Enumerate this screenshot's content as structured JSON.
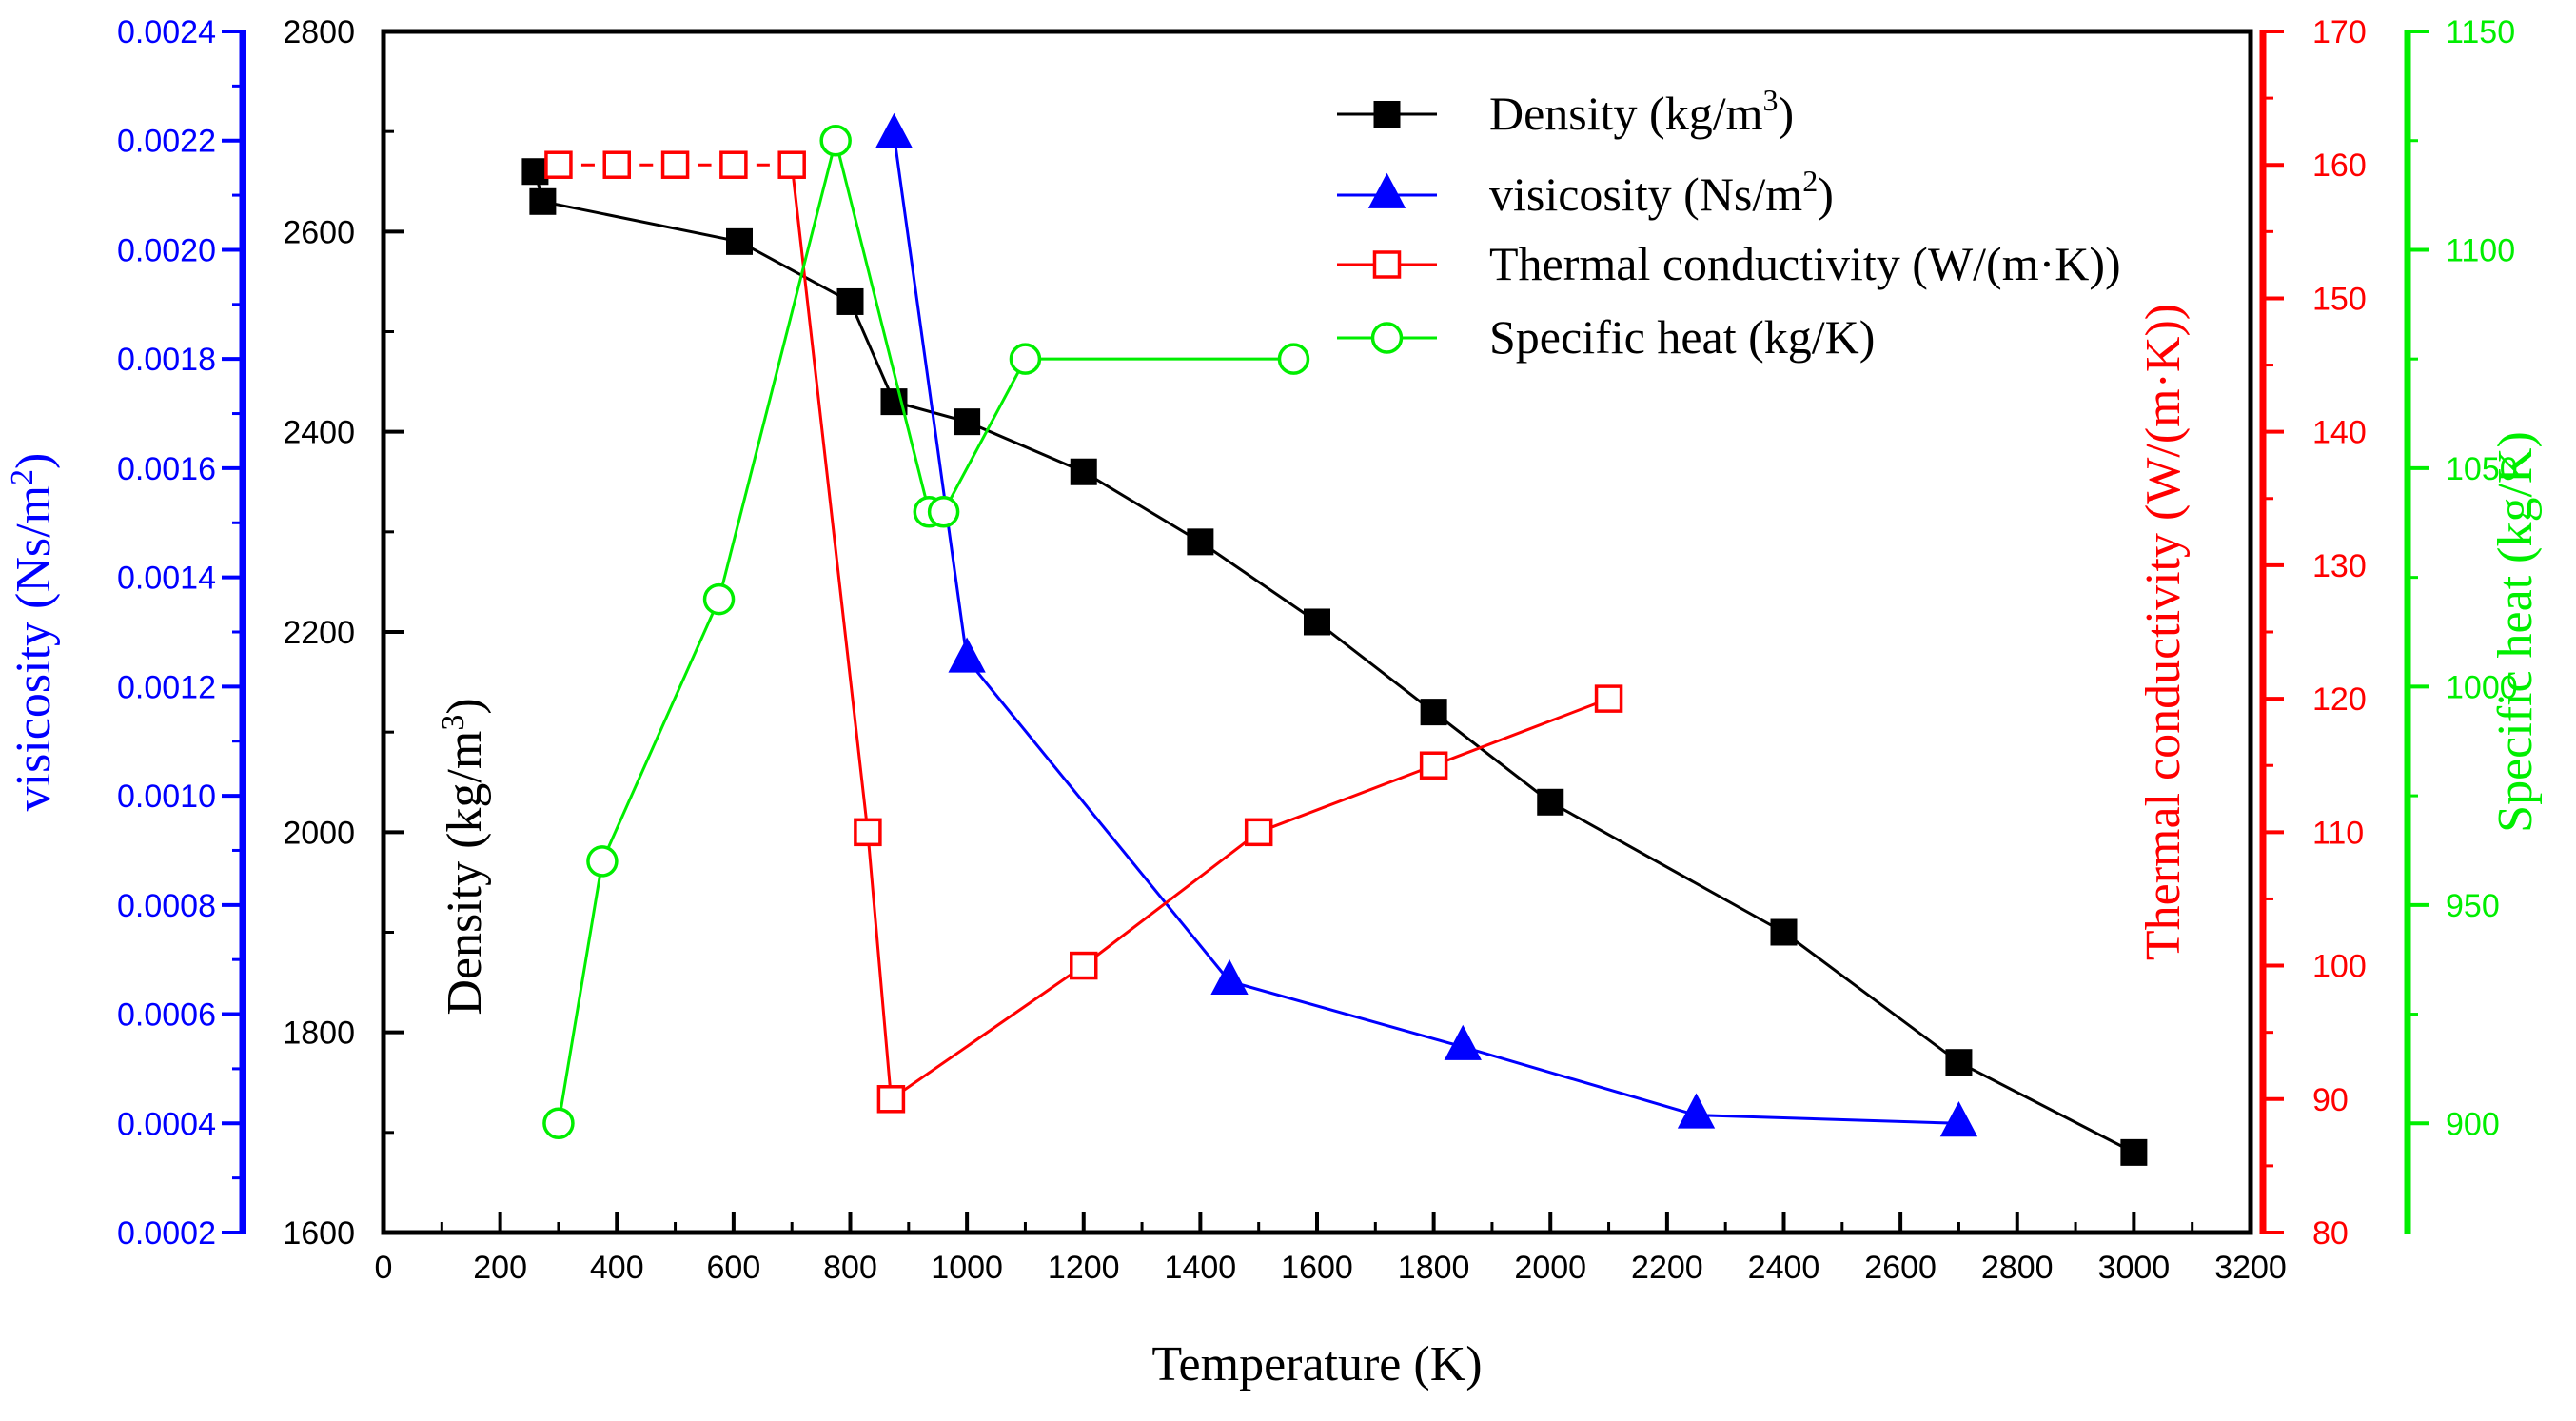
{
  "chart_data": {
    "type": "line",
    "title": "",
    "xlabel": "Temperature (K)",
    "xlim": [
      0,
      3200
    ],
    "x_ticks": [
      "0",
      "200",
      "400",
      "600",
      "800",
      "1000",
      "1200",
      "1400",
      "1600",
      "1800",
      "2000",
      "2200",
      "2400",
      "2600",
      "2800",
      "3000",
      "3200"
    ],
    "grid": false,
    "legend_position": "top-right",
    "axes": {
      "density": {
        "label": "Density (kg/m3)",
        "label_base": "Density (kg/m",
        "label_sup": "3",
        "label_end": ")",
        "ylim": [
          1600,
          2800
        ],
        "ticks": [
          "1600",
          "1800",
          "2000",
          "2200",
          "2400",
          "2600",
          "2800"
        ],
        "color": "#000000",
        "side": "left-inner"
      },
      "viscosity": {
        "label": "visicosity (Ns/m2)",
        "label_base": "visicosity (Ns/m",
        "label_sup": "2",
        "label_end": ")",
        "ylim": [
          0.0002,
          0.0024
        ],
        "ticks": [
          "0.0002",
          "0.0004",
          "0.0006",
          "0.0008",
          "0.0010",
          "0.0012",
          "0.0014",
          "0.0016",
          "0.0018",
          "0.0020",
          "0.0022",
          "0.0024"
        ],
        "color": "#0000ff",
        "side": "left-outer"
      },
      "thermal_conductivity": {
        "label": "Thermal conductivity (W/(m·K))",
        "ylim": [
          80,
          170
        ],
        "ticks": [
          "80",
          "90",
          "100",
          "110",
          "120",
          "130",
          "140",
          "150",
          "160",
          "170"
        ],
        "color": "#ff0000",
        "side": "right-inner"
      },
      "specific_heat": {
        "label": "Specific heat (kg/K)",
        "ylim": [
          875,
          1150
        ],
        "ticks": [
          "900",
          "950",
          "1000",
          "1050",
          "1100",
          "1150"
        ],
        "color": "#00ee00",
        "side": "right-outer"
      }
    },
    "series": [
      {
        "key": "density",
        "name": "Density (kg/m3)",
        "legend_base": "Density (kg/m",
        "legend_sup": "3",
        "legend_end": ")",
        "axis": "density",
        "marker": "square-filled",
        "color": "#000000",
        "dashed": false,
        "points": [
          [
            260,
            2660
          ],
          [
            273,
            2630
          ],
          [
            610,
            2590
          ],
          [
            800,
            2530
          ],
          [
            875,
            2430
          ],
          [
            1000,
            2410
          ],
          [
            1200,
            2360
          ],
          [
            1400,
            2290
          ],
          [
            1600,
            2210
          ],
          [
            1800,
            2120
          ],
          [
            2000,
            2030
          ],
          [
            2400,
            1900
          ],
          [
            2700,
            1770
          ],
          [
            3000,
            1680
          ]
        ]
      },
      {
        "key": "viscosity",
        "name": "visicosity (Ns/m2)",
        "legend_base": "visicosity (Ns/m",
        "legend_sup": "2",
        "legend_end": ")",
        "axis": "viscosity",
        "marker": "triangle-filled",
        "color": "#0000ff",
        "dashed": false,
        "points": [
          [
            875,
            0.00221
          ],
          [
            1000,
            0.00125
          ],
          [
            1450,
            0.00066
          ],
          [
            1850,
            0.00054
          ],
          [
            2250,
            0.000415
          ],
          [
            2700,
            0.0004
          ]
        ]
      },
      {
        "key": "thermal_conductivity",
        "name": "Thermal conductivity (W/(m·K))",
        "axis": "thermal_conductivity",
        "marker": "square-open",
        "color": "#ff0000",
        "points": [
          [
            300,
            160
          ],
          [
            400,
            160
          ],
          [
            500,
            160
          ],
          [
            600,
            160
          ],
          [
            700,
            160
          ],
          [
            830,
            110
          ],
          [
            870,
            90
          ],
          [
            1200,
            100
          ],
          [
            1500,
            110
          ],
          [
            1800,
            115
          ],
          [
            2100,
            120
          ]
        ],
        "dashed_until_index": 4
      },
      {
        "key": "specific_heat",
        "name": "Specific heat (kg/K)",
        "axis": "specific_heat",
        "marker": "circle-open",
        "color": "#00ee00",
        "dashed": false,
        "points": [
          [
            300,
            900
          ],
          [
            375,
            960
          ],
          [
            575,
            1020
          ],
          [
            775,
            1125
          ],
          [
            935,
            1040
          ],
          [
            960,
            1040
          ],
          [
            1100,
            1075
          ],
          [
            1560,
            1075
          ]
        ]
      }
    ]
  }
}
